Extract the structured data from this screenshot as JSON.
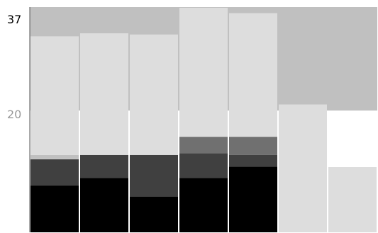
{
  "chart_data": {
    "type": "bar",
    "stacked": true,
    "categories": [
      "",
      "",
      "",
      "",
      "",
      "",
      ""
    ],
    "ylim": [
      0,
      37
    ],
    "y_ticks": [
      {
        "value": 37,
        "label": "37",
        "color": "#000000"
      },
      {
        "value": 20,
        "label": "20",
        "color": "#999999"
      }
    ],
    "grid": false,
    "legend": "none",
    "background_band": {
      "from_value": 20,
      "to_value": 37,
      "color": "#c0c0c0"
    },
    "series": [
      {
        "color": "#000000",
        "values": [
          7.7,
          8.9,
          5.9,
          8.9,
          10.8,
          0,
          0
        ]
      },
      {
        "color": "#404040",
        "values": [
          4.3,
          3.8,
          6.8,
          4.1,
          1.9,
          0,
          0
        ]
      },
      {
        "color": "#707070",
        "values": [
          0,
          0,
          0,
          2.7,
          3.0,
          0,
          0
        ]
      },
      {
        "color": "#c0c0c0",
        "values": [
          0.7,
          0,
          0,
          0,
          0,
          0,
          0
        ]
      },
      {
        "color": "#dddddd",
        "values": [
          19.5,
          20.0,
          19.8,
          21.2,
          20.3,
          21.0,
          10.7
        ]
      }
    ]
  }
}
